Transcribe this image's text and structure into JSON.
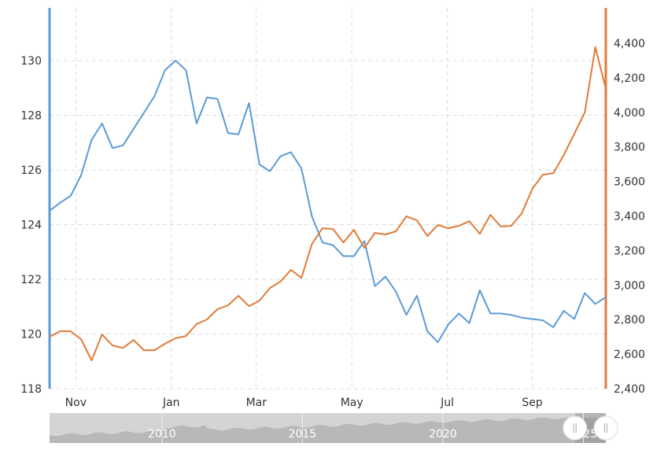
{
  "chart_data": {
    "type": "line",
    "title": "",
    "xlabel": "",
    "x": [
      0,
      1,
      2,
      3,
      4,
      5,
      6,
      7,
      8,
      9,
      10,
      11,
      12,
      13,
      14,
      15,
      16,
      17,
      18,
      19,
      20,
      21,
      22,
      23,
      24,
      25,
      26,
      27,
      28,
      29,
      30,
      31,
      32,
      33,
      34,
      35,
      36,
      37,
      38,
      39,
      40,
      41,
      42,
      43,
      44,
      45,
      46,
      47,
      48,
      49,
      50,
      51,
      52,
      53
    ],
    "x_ticks": [
      {
        "pos": 2.5,
        "label": "Nov"
      },
      {
        "pos": 11.6,
        "label": "Jan"
      },
      {
        "pos": 19.7,
        "label": "Mar"
      },
      {
        "pos": 28.8,
        "label": "May"
      },
      {
        "pos": 37.9,
        "label": "Jul"
      },
      {
        "pos": 46.0,
        "label": "Sep"
      }
    ],
    "grid": true,
    "series": [
      {
        "name": "left-series",
        "axis": "left",
        "color": "#5b9bd5",
        "values": [
          124.5,
          124.8,
          125.05,
          125.8,
          127.1,
          127.7,
          126.8,
          126.9,
          127.5,
          128.1,
          128.7,
          129.65,
          130.0,
          129.65,
          127.7,
          128.65,
          128.6,
          127.35,
          127.3,
          128.45,
          126.2,
          125.95,
          126.5,
          126.65,
          126.05,
          124.3,
          123.35,
          123.25,
          122.85,
          122.85,
          123.4,
          121.75,
          122.1,
          121.55,
          120.7,
          121.4,
          120.1,
          119.7,
          120.35,
          120.75,
          120.4,
          121.6,
          120.75,
          120.75,
          120.7,
          120.6,
          120.55,
          120.5,
          120.25,
          120.85,
          120.55,
          121.5,
          121.1,
          121.35
        ]
      },
      {
        "name": "right-series",
        "axis": "right",
        "color": "#e07b39",
        "values": [
          2700,
          2733,
          2733,
          2687,
          2564,
          2714,
          2650,
          2636,
          2682,
          2623,
          2623,
          2660,
          2692,
          2705,
          2774,
          2801,
          2860,
          2883,
          2938,
          2878,
          2910,
          2983,
          3020,
          3088,
          3042,
          3238,
          3329,
          3325,
          3247,
          3320,
          3215,
          3302,
          3293,
          3311,
          3398,
          3375,
          3284,
          3348,
          3329,
          3343,
          3370,
          3297,
          3407,
          3339,
          3343,
          3416,
          3557,
          3639,
          3648,
          3753,
          3876,
          3999,
          4377,
          4136
        ]
      }
    ],
    "y_left": {
      "range": [
        118,
        132
      ],
      "ticks": [
        118,
        120,
        122,
        124,
        126,
        128,
        130
      ],
      "labels": [
        "118",
        "120",
        "122",
        "124",
        "126",
        "128",
        "130"
      ],
      "color": "#5b9bd5"
    },
    "y_right": {
      "range": [
        2400,
        4600
      ],
      "ticks": [
        2400,
        2600,
        2800,
        3000,
        3200,
        3400,
        3600,
        3800,
        4000,
        4200,
        4400
      ],
      "labels": [
        "2,400",
        "2,600",
        "2,800",
        "3,000",
        "3,200",
        "3,400",
        "3,600",
        "3,800",
        "4,000",
        "4,200",
        "4,400"
      ],
      "color": "#e07b39"
    },
    "navigator": {
      "labels": [
        {
          "year": 2010,
          "label": "2010"
        },
        {
          "year": 2015,
          "label": "2015"
        },
        {
          "year": 2020,
          "label": "2020"
        },
        {
          "year": 2025,
          "label": "2025"
        }
      ],
      "range": [
        2006,
        2025.8
      ],
      "selected": [
        2024.7,
        2025.8
      ]
    }
  }
}
